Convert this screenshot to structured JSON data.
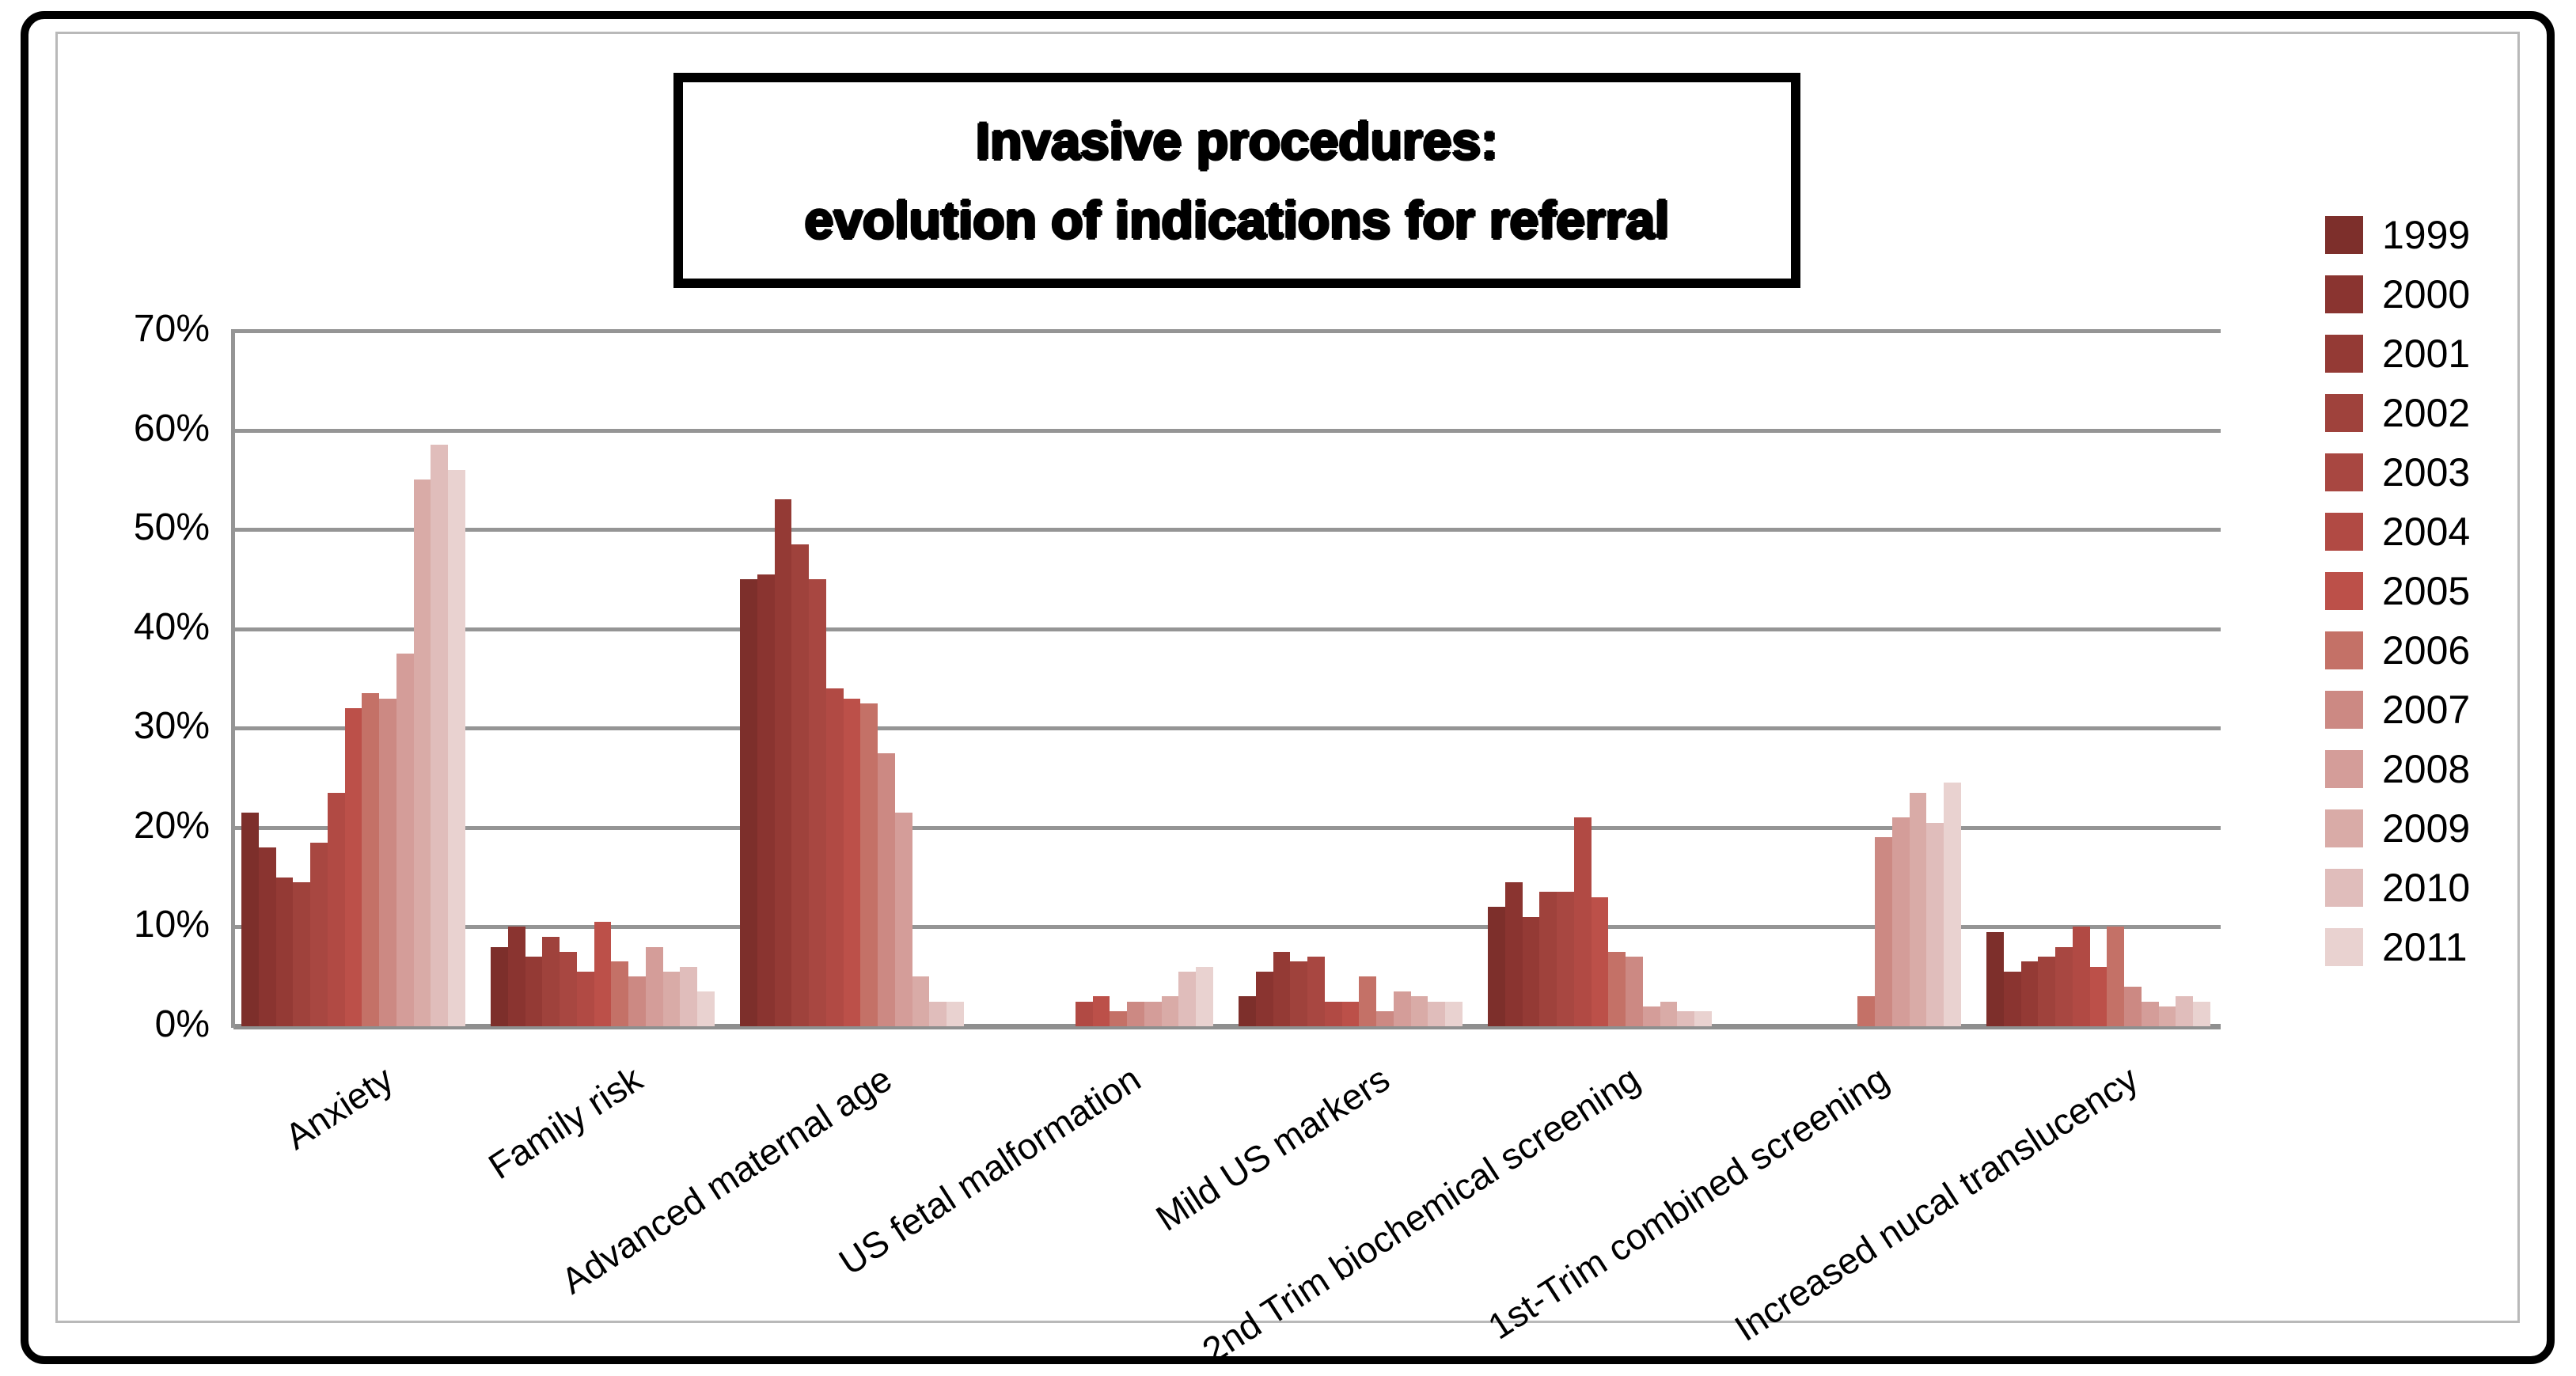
{
  "chart_data": {
    "type": "bar",
    "title": "Invasive procedures: evolution of indications for referral",
    "title_line1": "Invasive procedures:",
    "title_line2": "evolution of indications for referral",
    "ylabel": "",
    "xlabel": "",
    "ylim": [
      0,
      70
    ],
    "y_ticks": [
      "0%",
      "10%",
      "20%",
      "30%",
      "40%",
      "50%",
      "60%",
      "70%"
    ],
    "grid": true,
    "legend_position": "right",
    "categories": [
      "Anxiety",
      "Family risk",
      "Advanced maternal age",
      "US fetal malformation",
      "Mild US markers",
      "2nd Trim biochemical screening",
      "1st-Trim combined screening",
      "Increased nucal translucency"
    ],
    "series": [
      {
        "name": "1999",
        "color": "#7D2F2B",
        "values": [
          21.5,
          8,
          45,
          0,
          3,
          12,
          0,
          9.5
        ]
      },
      {
        "name": "2000",
        "color": "#8A3430",
        "values": [
          18,
          10,
          45.5,
          0,
          5.5,
          14.5,
          0,
          5.5
        ]
      },
      {
        "name": "2001",
        "color": "#943A35",
        "values": [
          15,
          7,
          53,
          0,
          7.5,
          11,
          0,
          6.5
        ]
      },
      {
        "name": "2002",
        "color": "#9F423C",
        "values": [
          14.5,
          9,
          48.5,
          0,
          6.5,
          13.5,
          0,
          7
        ]
      },
      {
        "name": "2003",
        "color": "#A84741",
        "values": [
          18.5,
          7.5,
          45,
          0,
          7,
          13.5,
          0,
          8
        ]
      },
      {
        "name": "2004",
        "color": "#B14A44",
        "values": [
          23.5,
          5.5,
          34,
          2.5,
          2.5,
          21,
          0,
          10
        ]
      },
      {
        "name": "2005",
        "color": "#BC5049",
        "values": [
          32,
          10.5,
          33,
          3,
          2.5,
          13,
          0,
          6
        ]
      },
      {
        "name": "2006",
        "color": "#C47167",
        "values": [
          33.5,
          6.5,
          32.5,
          1.5,
          5,
          7.5,
          3,
          10
        ]
      },
      {
        "name": "2007",
        "color": "#CC8983",
        "values": [
          33,
          5,
          27.5,
          2.5,
          1.5,
          7,
          19,
          4
        ]
      },
      {
        "name": "2008",
        "color": "#D49D99",
        "values": [
          37.5,
          8,
          21.5,
          2.5,
          3.5,
          2,
          21,
          2.5
        ]
      },
      {
        "name": "2009",
        "color": "#D9ABA7",
        "values": [
          55,
          5.5,
          5,
          3,
          3,
          2.5,
          23.5,
          2
        ]
      },
      {
        "name": "2010",
        "color": "#E0BDBB",
        "values": [
          58.5,
          6,
          2.5,
          5.5,
          2.5,
          1.5,
          20.5,
          3
        ]
      },
      {
        "name": "2011",
        "color": "#E9D2D0",
        "values": [
          56,
          3.5,
          2.5,
          6,
          2.5,
          1.5,
          24.5,
          2.5
        ]
      }
    ]
  }
}
